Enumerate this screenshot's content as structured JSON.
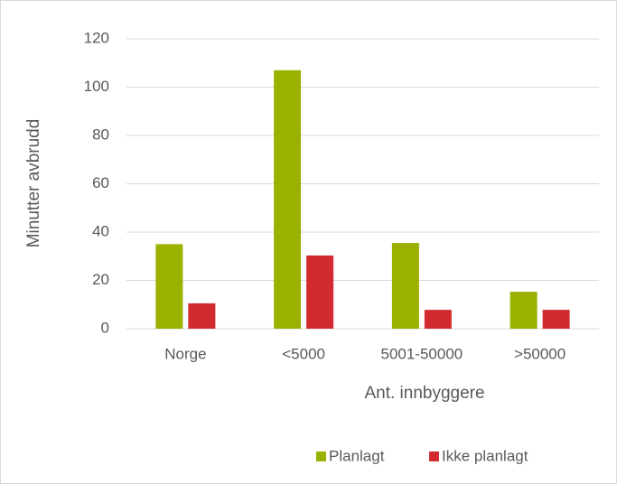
{
  "chart_data": {
    "type": "bar",
    "categories": [
      "Norge",
      "<5000",
      "5001-50000",
      ">50000"
    ],
    "series": [
      {
        "name": "Planlagt",
        "color": "#9bb100",
        "values": [
          35,
          107,
          35.5,
          15.3
        ]
      },
      {
        "name": "Ikke planlagt",
        "color": "#d22b2f",
        "values": [
          10.5,
          30.3,
          7.8,
          7.8
        ]
      }
    ],
    "x_label": "Ant. innbyggere",
    "y_label": "Minutter avbrudd",
    "ylim": [
      0,
      120
    ],
    "yticks": [
      0,
      20,
      40,
      60,
      80,
      100,
      120
    ],
    "grid": true,
    "legend": "bottom"
  }
}
